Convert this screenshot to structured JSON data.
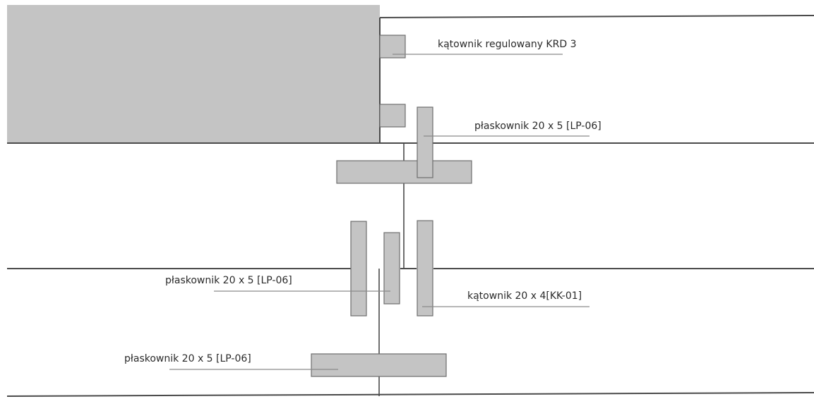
{
  "labels": {
    "krd": "kątownik regulowany KRD 3",
    "lp_top": "płaskownik 20 x 5 [LP-06]",
    "lp_middle": "płaskownik 20 x 5 [LP-06]",
    "kk": "kątownik 20 x 4[KK-01]",
    "lp_bottom": "płaskownik 20 x 5 [LP-06]"
  }
}
